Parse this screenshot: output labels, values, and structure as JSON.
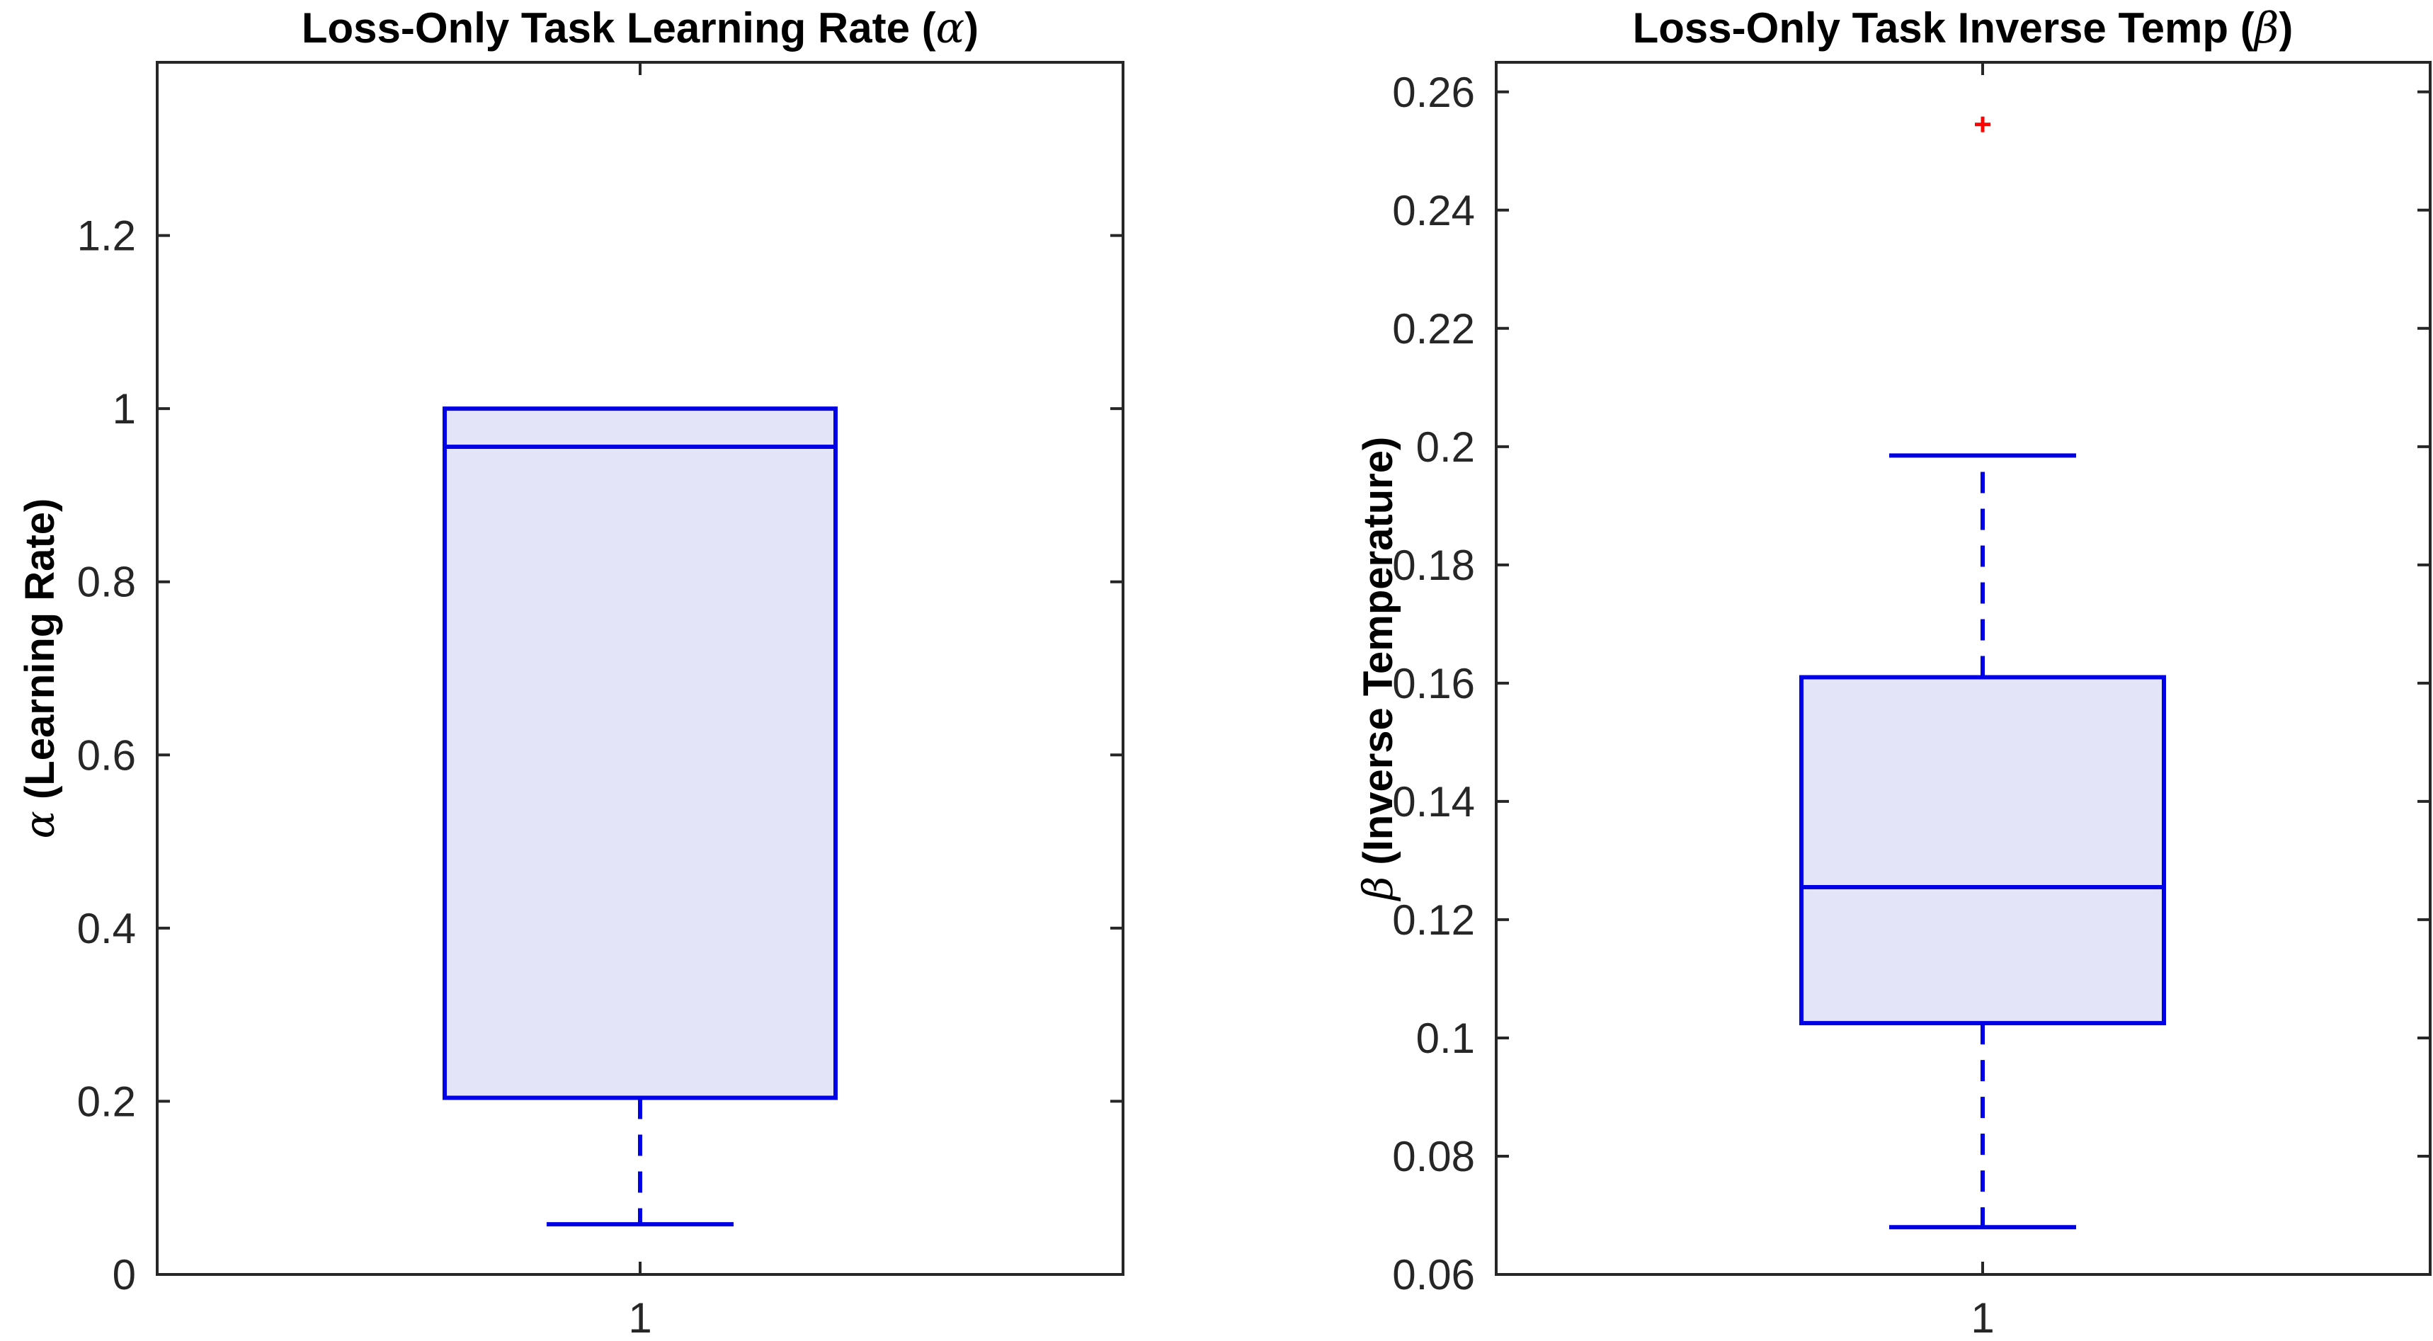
{
  "chart_data": [
    {
      "type": "box",
      "title": {
        "prefix": "Loss-Only Task Learning Rate (",
        "symbol": "α",
        "suffix": ")"
      },
      "ylabel": {
        "symbol": "α",
        "text": " (Learning Rate)"
      },
      "xlabel": "",
      "categories": [
        "1"
      ],
      "ylim": [
        0,
        1.4
      ],
      "yticks": [
        0,
        0.2,
        0.4,
        0.6,
        0.8,
        1,
        1.2
      ],
      "ytick_labels": [
        "0",
        "0.2",
        "0.4",
        "0.6",
        "0.8",
        "1",
        "1.2"
      ],
      "box": {
        "whisker_low": 0.058,
        "q1": 0.204,
        "median": 0.956,
        "q3": 1.0,
        "whisker_high": 1.0
      },
      "outliers": [],
      "grid": false
    },
    {
      "type": "box",
      "title": {
        "prefix": "Loss-Only Task Inverse Temp (",
        "symbol": "β",
        "suffix": ")"
      },
      "ylabel": {
        "symbol": "β",
        "text": " (Inverse Temperature)"
      },
      "xlabel": "",
      "categories": [
        "1"
      ],
      "ylim": [
        0.06,
        0.265
      ],
      "yticks": [
        0.06,
        0.08,
        0.1,
        0.12,
        0.14,
        0.16,
        0.18,
        0.2,
        0.22,
        0.24,
        0.26
      ],
      "ytick_labels": [
        "0.06",
        "0.08",
        "0.1",
        "0.12",
        "0.14",
        "0.16",
        "0.18",
        "0.2",
        "0.22",
        "0.24",
        "0.26"
      ],
      "box": {
        "whisker_low": 0.068,
        "q1": 0.1025,
        "median": 0.1255,
        "q3": 0.161,
        "whisker_high": 0.1985
      },
      "outliers": [
        0.2545
      ],
      "grid": false
    }
  ],
  "colors": {
    "box_edge": "#0000e6",
    "box_fill": "#e4e4f8",
    "outlier": "#ff0000",
    "axis": "#262626"
  }
}
